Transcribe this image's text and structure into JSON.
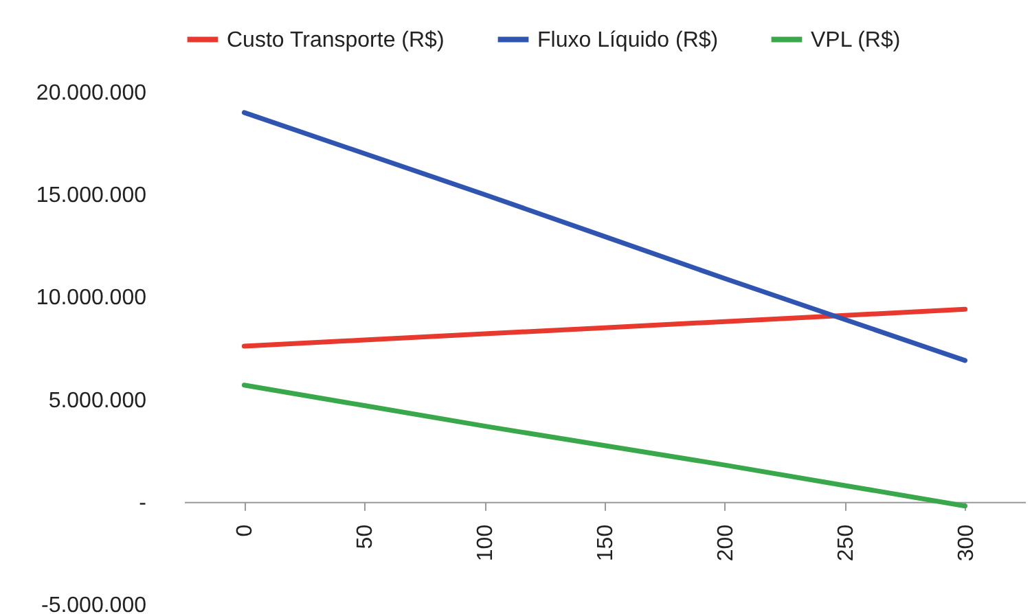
{
  "chart_data": {
    "type": "line",
    "categories": [
      "0",
      "50",
      "100",
      "150",
      "200",
      "250",
      "300"
    ],
    "series": [
      {
        "name": "Custo Transporte (R$)",
        "color": "#e8392f",
        "values": [
          7600000,
          7900000,
          8200000,
          8500000,
          8800000,
          9100000,
          9400000
        ]
      },
      {
        "name": "Fluxo Líquido (R$)",
        "color": "#2f55b0",
        "values": [
          19000000,
          17000000,
          15000000,
          12950000,
          10900000,
          8900000,
          6900000
        ]
      },
      {
        "name": "VPL (R$)",
        "color": "#38a84a",
        "values": [
          5700000,
          4700000,
          3700000,
          2750000,
          1800000,
          800000,
          -200000
        ]
      }
    ],
    "ylim": [
      -5000000,
      20000000
    ],
    "yticks": [
      {
        "value": -5000000,
        "label": "-5.000.000"
      },
      {
        "value": 0,
        "label": "-"
      },
      {
        "value": 5000000,
        "label": "5.000.000"
      },
      {
        "value": 10000000,
        "label": "10.000.000"
      },
      {
        "value": 15000000,
        "label": "15.000.000"
      },
      {
        "value": 20000000,
        "label": "20.000.000"
      }
    ],
    "grid": false,
    "legend": "top",
    "marker": "none",
    "line_style": "solid"
  }
}
